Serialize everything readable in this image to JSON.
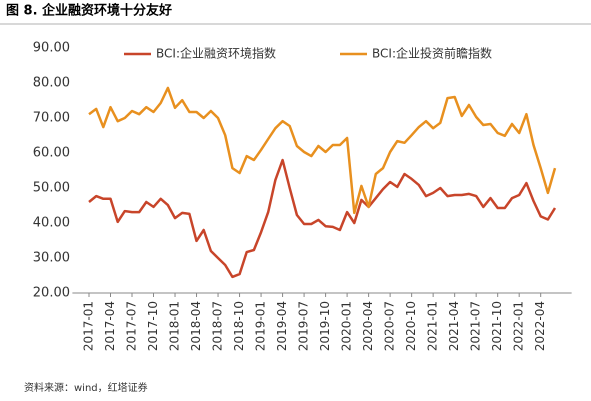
{
  "chart_data": {
    "type": "line",
    "title": "图 8. 企业融资环境十分友好",
    "source": "资料来源：wind，红塔证券",
    "categories": [
      "2017-01",
      null,
      null,
      "2017-04",
      null,
      null,
      "2017-07",
      null,
      null,
      "2017-10",
      null,
      null,
      "2018-01",
      null,
      null,
      "2018-04",
      null,
      null,
      "2018-07",
      null,
      null,
      "2018-10",
      null,
      null,
      "2019-01",
      null,
      null,
      "2019-04",
      null,
      null,
      "2019-07",
      null,
      null,
      "2019-10",
      null,
      null,
      "2020-01",
      null,
      null,
      "2020-04",
      null,
      null,
      "2020-07",
      null,
      null,
      "2020-10",
      null,
      null,
      "2021-01",
      null,
      null,
      "2021-04",
      null,
      null,
      "2021-07",
      null,
      null,
      "2021-10",
      null,
      null,
      "2022-01",
      null,
      null,
      "2022-04",
      null,
      null
    ],
    "series": [
      {
        "name": "BCI:企业融资环境指数",
        "color": "#c8452a",
        "values": [
          46,
          47.7,
          46.9,
          46.9,
          40.3,
          43.4,
          43.1,
          43.1,
          46,
          44.6,
          46.9,
          45.1,
          41.4,
          42.9,
          42.6,
          34.9,
          38,
          32,
          30,
          28,
          24.6,
          25.4,
          31.7,
          32.3,
          37.4,
          43.1,
          52.3,
          58,
          50,
          42.3,
          39.7,
          39.7,
          40.9,
          39.1,
          38.9,
          38,
          43.1,
          40,
          46.6,
          44.6,
          47.1,
          49.7,
          51.7,
          50.3,
          54,
          52.6,
          50.9,
          47.7,
          48.6,
          50,
          47.7,
          48,
          48,
          48.3,
          47.7,
          44.6,
          47.1,
          44.3,
          44.3,
          47.1,
          48,
          51.4,
          46.3,
          41.9,
          41,
          44.3
        ]
      },
      {
        "name": "BCI:企业投资前瞻指数",
        "color": "#e8901f",
        "values": [
          71.1,
          72.6,
          67.4,
          73.1,
          69.1,
          70,
          72,
          71.1,
          73.1,
          71.7,
          74.3,
          78.6,
          72.9,
          75.1,
          71.7,
          71.7,
          70,
          72,
          70,
          65.1,
          55.7,
          54.3,
          59.1,
          58,
          60.9,
          64,
          67.1,
          69.1,
          67.7,
          62,
          60.3,
          59.1,
          62,
          60.3,
          62.3,
          62.3,
          64.3,
          42.9,
          50.6,
          44.6,
          54,
          55.7,
          60.3,
          63.4,
          62.9,
          65.1,
          67.4,
          69.1,
          67.1,
          68.6,
          75.7,
          76,
          70.6,
          73.7,
          70.3,
          68,
          68.3,
          65.7,
          64.9,
          68.3,
          65.7,
          71.1,
          62.3,
          55.7,
          48.6,
          55.7
        ]
      }
    ],
    "ylim": [
      20,
      90
    ],
    "yticks": [
      {
        "value": 20,
        "label": "20.00"
      },
      {
        "value": 30,
        "label": "30.00"
      },
      {
        "value": 40,
        "label": "40.00"
      },
      {
        "value": 50,
        "label": "50.00"
      },
      {
        "value": 60,
        "label": "60.00"
      },
      {
        "value": 70,
        "label": "70.00"
      },
      {
        "value": 80,
        "label": "80.00"
      },
      {
        "value": 90,
        "label": "90.00"
      }
    ],
    "grid": false
  }
}
